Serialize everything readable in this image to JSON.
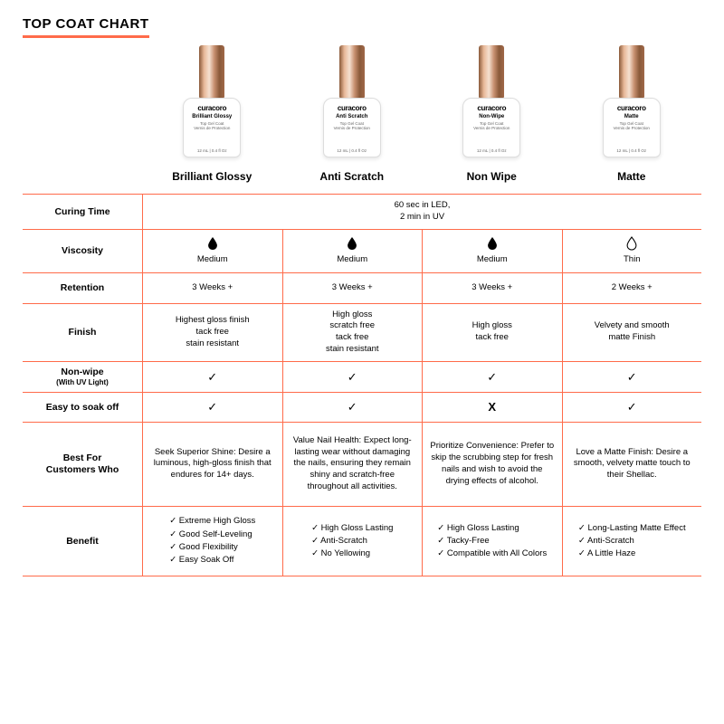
{
  "title": "TOP COAT CHART",
  "colors": {
    "divider": "#ff6b4a",
    "text": "#000000",
    "background": "#ffffff"
  },
  "bottle": {
    "brand": "curacoro",
    "sub1": "Top Gel Coat",
    "sub2": "Vernis de Protection",
    "size": "12 mL | 0.4 fl Oz"
  },
  "products": [
    {
      "bottle_label": "Brilliant Glossy",
      "name": "Brilliant Glossy"
    },
    {
      "bottle_label": "Anti Scratch",
      "name": "Anti Scratch"
    },
    {
      "bottle_label": "Non-Wipe",
      "name": "Non Wipe"
    },
    {
      "bottle_label": "Matte",
      "name": "Matte"
    }
  ],
  "rows": {
    "curing": {
      "label": "Curing Time",
      "value": "60 sec in LED,\n2 min in UV"
    },
    "viscosity": {
      "label": "Viscosity",
      "values": [
        "Medium",
        "Medium",
        "Medium",
        "Thin"
      ],
      "filled": [
        true,
        true,
        true,
        false
      ]
    },
    "retention": {
      "label": "Retention",
      "values": [
        "3 Weeks +",
        "3 Weeks +",
        "3 Weeks +",
        "2 Weeks +"
      ]
    },
    "finish": {
      "label": "Finish",
      "values": [
        "Highest gloss finish\ntack free\nstain resistant",
        "High gloss\nscratch free\ntack free\nstain resistant",
        "High gloss\ntack free",
        "Velvety and smooth\nmatte Finish"
      ]
    },
    "nonwipe": {
      "label": "Non-wipe",
      "sublabel": "(With UV Light)",
      "values": [
        "✓",
        "✓",
        "✓",
        "✓"
      ]
    },
    "soakoff": {
      "label": "Easy to soak off",
      "values": [
        "✓",
        "✓",
        "X",
        "✓"
      ]
    },
    "bestfor": {
      "label": "Best For\nCustomers Who",
      "values": [
        "Seek Superior Shine: Desire a luminous, high-gloss finish that endures for 14+ days.",
        "Value Nail Health: Expect long-lasting wear without damaging the nails, ensuring they remain shiny and scratch-free throughout all activities.",
        "Prioritize Convenience: Prefer to skip the scrubbing step for fresh nails and wish to avoid the drying effects of alcohol.",
        "Love a Matte Finish: Desire a smooth, velvety matte touch to their Shellac."
      ]
    },
    "benefit": {
      "label": "Benefit",
      "values": [
        [
          "Extreme High Gloss",
          "Good Self-Leveling",
          "Good Flexibility",
          "Easy Soak Off"
        ],
        [
          "High Gloss Lasting",
          "Anti-Scratch",
          "No Yellowing"
        ],
        [
          "High Gloss Lasting",
          "Tacky-Free",
          "Compatible with All Colors"
        ],
        [
          "Long-Lasting Matte Effect",
          "Anti-Scratch",
          "A Little Haze"
        ]
      ]
    }
  }
}
